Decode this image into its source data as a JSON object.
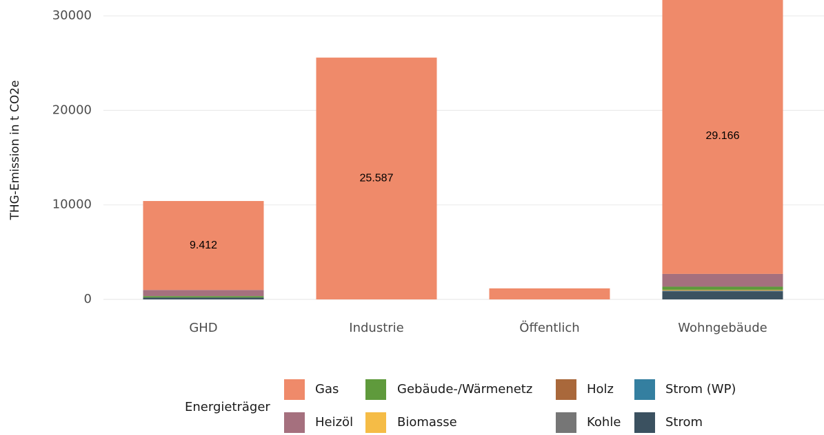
{
  "chart_data": {
    "type": "stacked_bar",
    "y_label": "THG-Emission in t CO2e",
    "legend_title": "Energieträger",
    "categories": [
      "GHD",
      "Industrie",
      "Öffentlich",
      "Wohngebäude"
    ],
    "series": [
      {
        "name": "Gas",
        "color": "#ef8a6a",
        "values": [
          9412,
          25587,
          1165,
          29166
        ],
        "value_labels": [
          "9.412",
          "25.587",
          null,
          "29.166"
        ]
      },
      {
        "name": "Heizöl",
        "color": "#a5707e",
        "values": [
          650,
          0,
          0,
          1350
        ]
      },
      {
        "name": "Gebäude-/Wärmenetz",
        "color": "#5f9a3c",
        "values": [
          150,
          0,
          0,
          350
        ]
      },
      {
        "name": "Biomasse",
        "color": "#f5bc46",
        "values": [
          0,
          0,
          0,
          50
        ]
      },
      {
        "name": "Holz",
        "color": "#a9683b",
        "values": [
          0,
          0,
          0,
          50
        ]
      },
      {
        "name": "Kohle",
        "color": "#767676",
        "values": [
          0,
          0,
          0,
          0
        ]
      },
      {
        "name": "Strom (WP)",
        "color": "#347fa0",
        "values": [
          0,
          0,
          0,
          50
        ]
      },
      {
        "name": "Strom",
        "color": "#3b5160",
        "values": [
          200,
          0,
          0,
          850
        ]
      }
    ],
    "ylim": [
      0,
      31680
    ],
    "yticks": [
      0,
      10000,
      20000,
      30000
    ],
    "grid": true,
    "legend_position": "bottom"
  }
}
